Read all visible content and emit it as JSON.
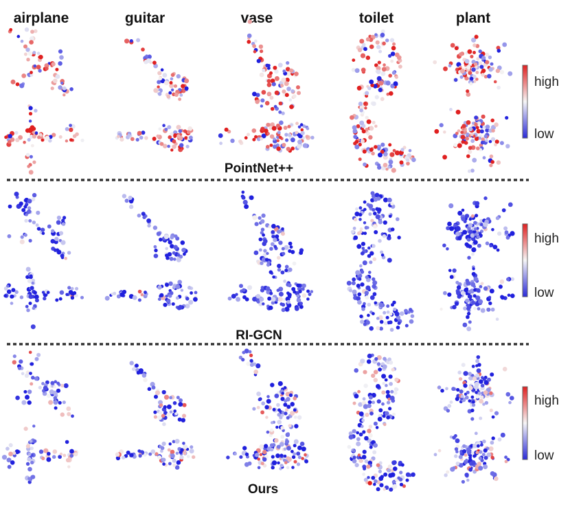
{
  "figure": {
    "categories": [
      "airplane",
      "guitar",
      "vase",
      "toilet",
      "plant"
    ],
    "methods": [
      {
        "name": "PointNet++",
        "colorbar": {
          "high": "high",
          "low": "low"
        }
      },
      {
        "name": "RI-GCN",
        "colorbar": {
          "high": "high",
          "low": "low"
        }
      },
      {
        "name": "Ours",
        "colorbar": {
          "high": "high",
          "low": "low"
        }
      }
    ],
    "colormap": {
      "low": "#2020dd",
      "mid": "#f4f4f4",
      "high": "#e02020"
    },
    "style_per_method": [
      {
        "mean_level": 0.58,
        "spread": 0.35
      },
      {
        "mean_level": 0.14,
        "spread": 0.22
      },
      {
        "mean_level": 0.25,
        "spread": 0.3
      }
    ]
  }
}
